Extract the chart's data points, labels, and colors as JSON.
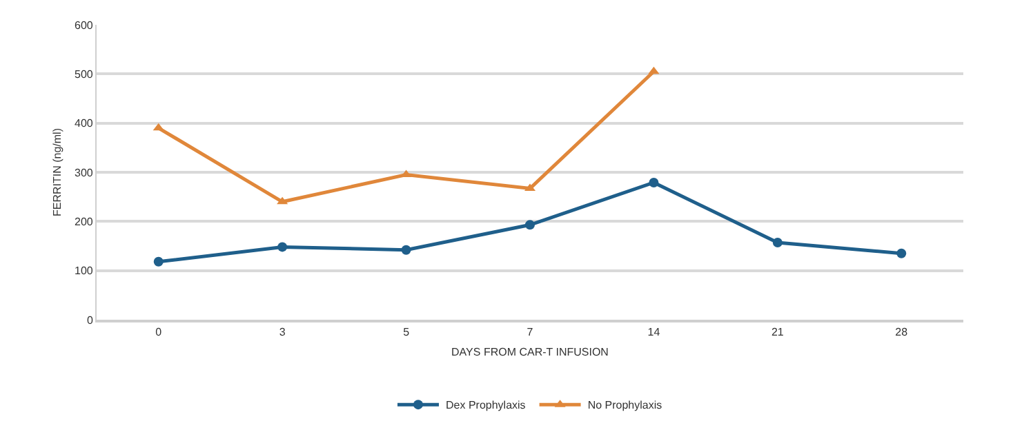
{
  "chart_data": {
    "type": "line",
    "xlabel": "DAYS FROM CAR-T INFUSION",
    "ylabel": "FERRITIN (ng/ml)",
    "categories": [
      "0",
      "3",
      "5",
      "7",
      "14",
      "21",
      "28"
    ],
    "series": [
      {
        "name": "Dex Prophylaxis",
        "color": "#1f5f8b",
        "marker": "circle",
        "values": [
          118,
          148,
          142,
          193,
          279,
          157,
          135
        ]
      },
      {
        "name": "No Prophylaxis",
        "color": "#e0873a",
        "marker": "triangle",
        "values": [
          390,
          240,
          295,
          267,
          505,
          null,
          null
        ]
      }
    ],
    "ylim": [
      0,
      600
    ],
    "yticks": [
      0,
      100,
      200,
      300,
      400,
      500,
      600
    ],
    "grid": "y",
    "legend": "bottom"
  }
}
